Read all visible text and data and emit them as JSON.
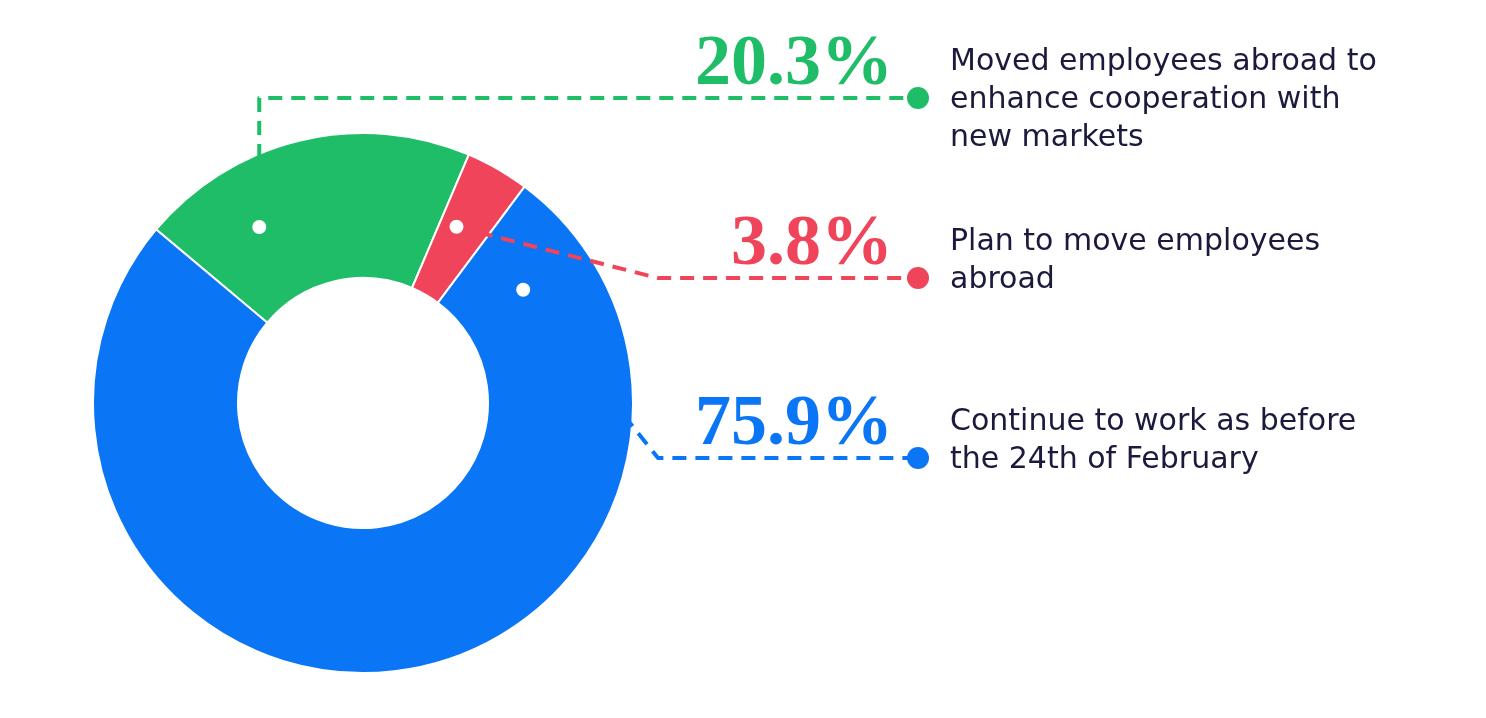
{
  "chart_data": {
    "type": "donut",
    "categories": [
      "Moved employees abroad to enhance cooperation with new markets",
      "Plan to move employees abroad",
      "Continue to work as before the 24th of February"
    ],
    "values": [
      20.3,
      3.8,
      75.9
    ],
    "colors": [
      "#1fbd67",
      "#ef4459",
      "#0a75f5"
    ],
    "value_labels": [
      "20.3%",
      "3.8%",
      "75.9%"
    ],
    "legend": "right"
  }
}
